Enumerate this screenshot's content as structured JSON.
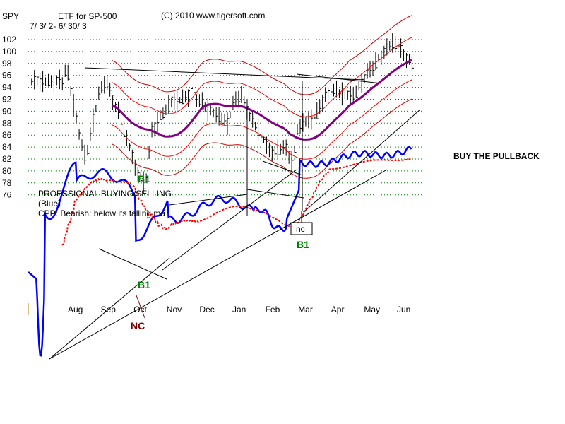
{
  "chart_data": {
    "type": "line",
    "symbol": "SPY",
    "title": "ETF for SP-500",
    "date_range": "7/ 3/ 2- 6/ 30/ 3",
    "copyright": "(C) 2010 www.tigersoft.com",
    "ylim": [
      74,
      103
    ],
    "y_ticks": [
      "102",
      "100",
      "98",
      "96",
      "94",
      "92",
      "90",
      "88",
      "86",
      "84",
      "82",
      "80",
      "78",
      "76"
    ],
    "x_ticks": [
      "Aug",
      "Sep",
      "Oct",
      "Nov",
      "Dec",
      "Jan",
      "Feb",
      "Mar",
      "Apr",
      "May",
      "Jun"
    ],
    "grid": true,
    "series": [
      {
        "name": "SPY price",
        "t": [
          0,
          0.1,
          0.3,
          0.5,
          0.7,
          0.9,
          1.1,
          1.3,
          1.5,
          1.7,
          1.9,
          2.0,
          2.2,
          2.5,
          2.7,
          3.0,
          3.3,
          3.6,
          3.9,
          4.2,
          4.5,
          4.8,
          5.0,
          5.2,
          5.4,
          5.6,
          5.8,
          6.0,
          6.2,
          6.4,
          6.6,
          6.8,
          7.0,
          7.1,
          7.3,
          7.5,
          7.7,
          7.9,
          8.2,
          8.5,
          8.8,
          9.1,
          9.4,
          9.7,
          10.0,
          10.2,
          10.4,
          10.6
        ],
        "values": [
          95.0,
          97.5,
          92.0,
          86.0,
          82.0,
          88.0,
          93.0,
          95.5,
          92.0,
          89.5,
          86.0,
          84.5,
          80.5,
          77.5,
          86.5,
          89.5,
          91.5,
          92.0,
          93.0,
          91.5,
          90.0,
          89.0,
          88.0,
          91.5,
          93.0,
          90.0,
          88.0,
          86.5,
          84.0,
          83.0,
          84.0,
          83.5,
          81.0,
          87.0,
          88.0,
          88.5,
          89.5,
          92.0,
          93.5,
          93.0,
          92.5,
          95.0,
          97.5,
          99.5,
          101.5,
          101.0,
          99.0,
          98.0
        ]
      },
      {
        "name": "Moving average",
        "color": "#800080"
      },
      {
        "name": "Upper band"
      },
      {
        "name": "Lower band"
      },
      {
        "name": "Blue: professional buying/selling",
        "color": "#0000ff"
      },
      {
        "name": "CPP moving average",
        "color": "#ff0000"
      }
    ],
    "annotations": {
      "prof_buying": "PROESSIONAL BUYING/SELLING",
      "blue_note": "(Blue)",
      "cpp_note": "CPP: Bearish: below its falling ma",
      "buy_pullback": "BUY THE PULLBACK",
      "b1": "B1",
      "nc_lower": "nc",
      "nc_upper": "NC"
    },
    "colors": {
      "buy_signal": "#008000",
      "nc_signal": "#800000",
      "price": "#000000"
    }
  }
}
